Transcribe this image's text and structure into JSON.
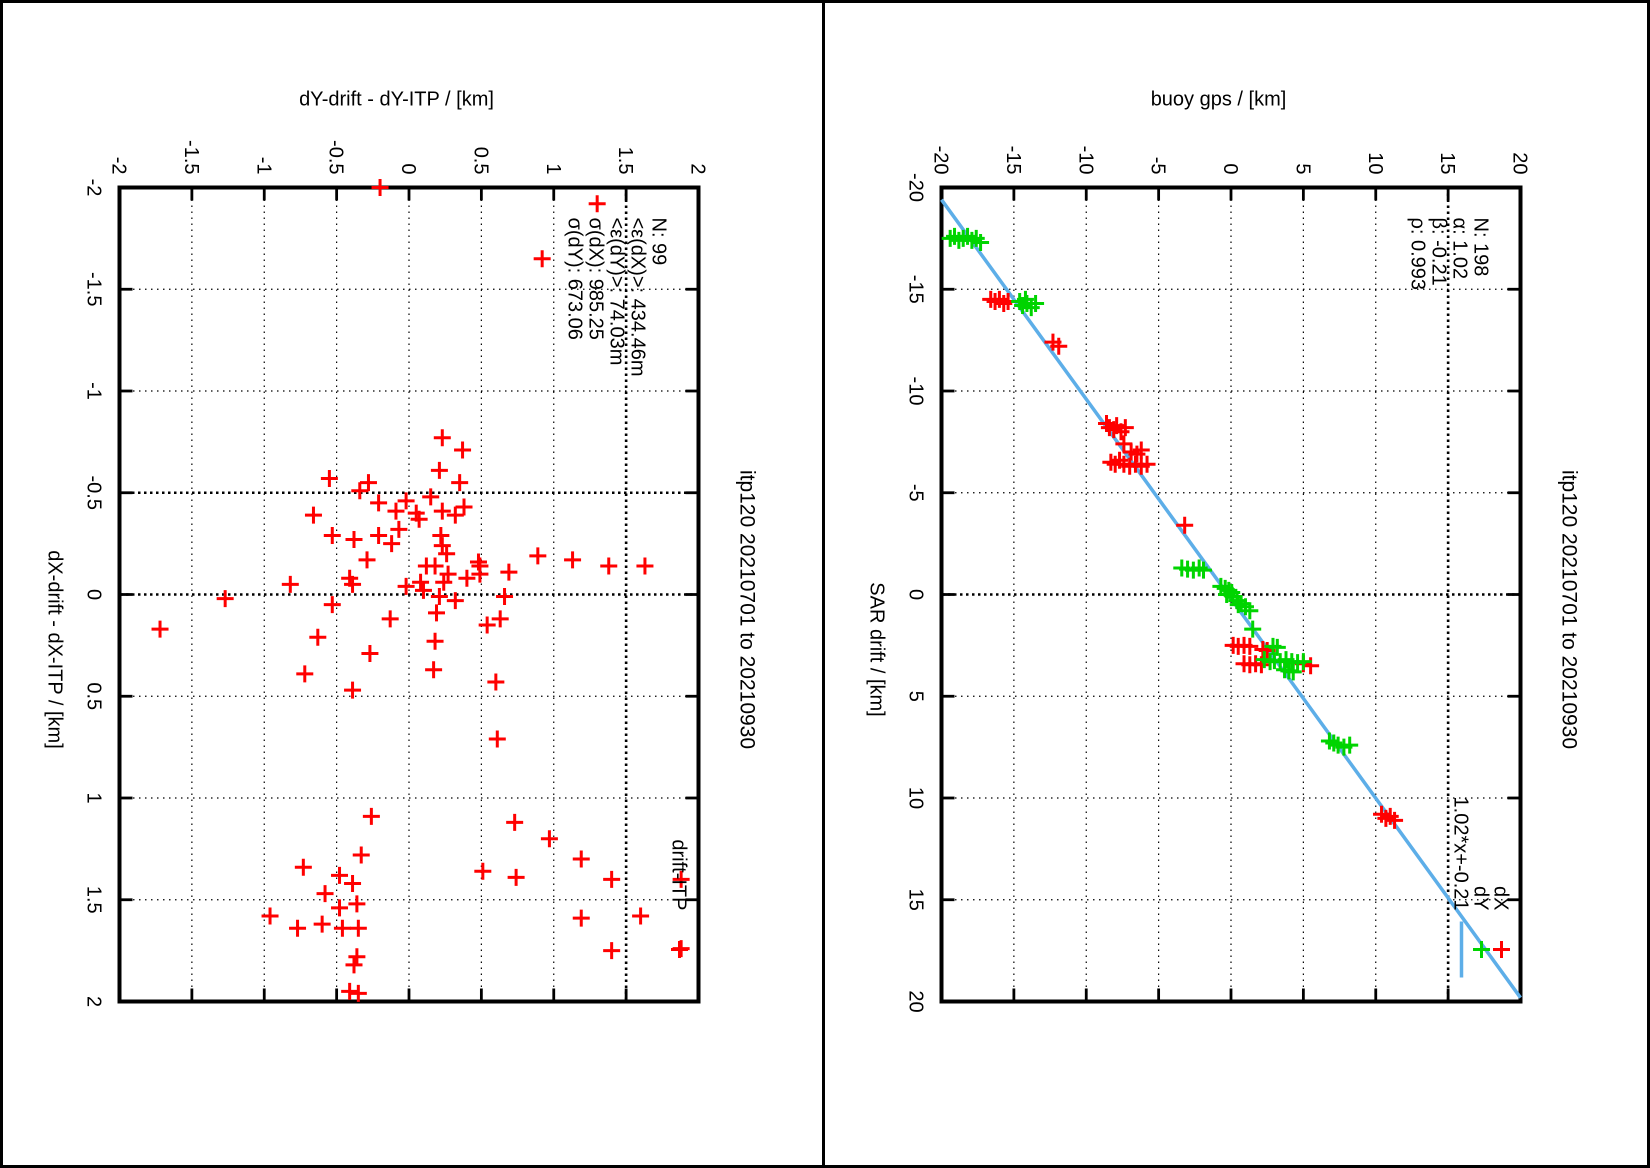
{
  "chart_data": [
    {
      "type": "scatter",
      "title": "itp120 20210701 to 20210930",
      "xlabel": "dX-drift - dX-ITP / [km]",
      "ylabel": "dY-drift - dY-ITP / [km]",
      "xlim": [
        -2,
        2
      ],
      "ylim": [
        -2,
        2
      ],
      "xticks": [
        -2,
        -1.5,
        -1,
        -0.5,
        0,
        0.5,
        1,
        1.5,
        2
      ],
      "xtick_labels": [
        "-2",
        "-1.5",
        "-1",
        "-0.5",
        "0",
        "0.5",
        "1",
        "1.5",
        "2"
      ],
      "yticks": [
        -2,
        -1.5,
        -1,
        -0.5,
        0,
        0.5,
        1,
        1.5,
        2
      ],
      "ytick_labels": [
        "-2",
        "-1.5",
        "-1",
        "-0.5",
        "0",
        "0.5",
        "1",
        "1.5",
        "2"
      ],
      "grid": true,
      "legend_position": "top-right",
      "grid_bold_x": [
        -0.5,
        0
      ],
      "grid_bold_y": [
        1.5
      ],
      "stats": [
        "N: 99",
        "<ε(dX)>:  434.46m",
        "<ε(dY)>:  74.03m",
        "σ(dX):  985.25",
        "σ(dY):  673.06"
      ],
      "key": [
        {
          "label": "drift-ITP",
          "type": "point",
          "color": "#ff0000"
        }
      ],
      "series": [
        {
          "name": "drift-ITP",
          "marker": "plus",
          "color": "#ff0000",
          "points": [
            [
              -1.92,
              1.3
            ],
            [
              -1.65,
              0.92
            ],
            [
              -2.0,
              -0.2
            ],
            [
              -0.77,
              0.23
            ],
            [
              -0.71,
              0.37
            ],
            [
              -0.61,
              0.21
            ],
            [
              -0.55,
              0.35
            ],
            [
              -0.57,
              -0.55
            ],
            [
              -0.55,
              -0.28
            ],
            [
              -0.51,
              -0.34
            ],
            [
              -0.45,
              -0.21
            ],
            [
              -0.46,
              -0.02
            ],
            [
              -0.48,
              0.15
            ],
            [
              -0.39,
              -0.66
            ],
            [
              -0.41,
              -0.09
            ],
            [
              -0.4,
              0.05
            ],
            [
              -0.37,
              0.07
            ],
            [
              -0.41,
              0.23
            ],
            [
              -0.39,
              0.32
            ],
            [
              -0.43,
              0.38
            ],
            [
              -0.29,
              -0.53
            ],
            [
              -0.27,
              -0.38
            ],
            [
              -0.29,
              -0.21
            ],
            [
              -0.32,
              -0.07
            ],
            [
              -0.25,
              -0.12
            ],
            [
              -0.29,
              0.22
            ],
            [
              -0.24,
              0.23
            ],
            [
              -0.2,
              0.26
            ],
            [
              -0.17,
              -0.29
            ],
            [
              -0.14,
              0.12
            ],
            [
              -0.14,
              0.18
            ],
            [
              -0.16,
              0.48
            ],
            [
              -0.14,
              0.49
            ],
            [
              -0.1,
              0.27
            ],
            [
              -0.1,
              0.49
            ],
            [
              -0.11,
              0.69
            ],
            [
              -0.08,
              -0.41
            ],
            [
              -0.05,
              -0.39
            ],
            [
              -0.06,
              0.24
            ],
            [
              -0.08,
              0.4
            ],
            [
              -0.05,
              -0.82
            ],
            [
              -0.04,
              -0.02
            ],
            [
              -0.06,
              0.08
            ],
            [
              -0.02,
              0.1
            ],
            [
              0.01,
              0.21
            ],
            [
              0.03,
              0.32
            ],
            [
              0.05,
              -0.53
            ],
            [
              0.09,
              0.19
            ],
            [
              0.12,
              -0.13
            ],
            [
              0.15,
              0.54
            ],
            [
              0.12,
              0.63
            ],
            [
              0.21,
              -0.63
            ],
            [
              0.23,
              0.18
            ],
            [
              0.29,
              -0.27
            ],
            [
              0.37,
              0.17
            ],
            [
              0.39,
              -0.72
            ],
            [
              0.43,
              0.6
            ],
            [
              0.47,
              -0.39
            ],
            [
              0.71,
              0.61
            ],
            [
              1.09,
              -0.26
            ],
            [
              1.28,
              -0.33
            ],
            [
              1.34,
              -0.73
            ],
            [
              1.38,
              -0.48
            ],
            [
              1.36,
              0.51
            ],
            [
              1.39,
              0.74
            ],
            [
              1.42,
              -0.39
            ],
            [
              1.47,
              -0.58
            ],
            [
              1.52,
              -0.36
            ],
            [
              1.54,
              -0.48
            ],
            [
              1.58,
              -0.96
            ],
            [
              1.64,
              -0.77
            ],
            [
              1.62,
              -0.6
            ],
            [
              1.64,
              -0.46
            ],
            [
              1.64,
              -0.35
            ],
            [
              1.78,
              -0.36
            ],
            [
              1.82,
              -0.38
            ],
            [
              1.95,
              -0.41
            ],
            [
              1.96,
              -0.35
            ],
            [
              -0.19,
              0.89
            ],
            [
              -0.17,
              1.13
            ],
            [
              -0.14,
              1.38
            ],
            [
              -0.14,
              1.63
            ],
            [
              0.01,
              0.66
            ],
            [
              1.12,
              0.73
            ],
            [
              1.2,
              0.97
            ],
            [
              1.3,
              1.19
            ],
            [
              1.4,
              1.4
            ],
            [
              1.4,
              1.88
            ],
            [
              1.58,
              1.6
            ],
            [
              1.59,
              1.19
            ],
            [
              1.75,
              1.4
            ],
            [
              1.74,
              1.88
            ],
            [
              0.02,
              -1.27
            ],
            [
              0.17,
              -1.72
            ]
          ]
        }
      ]
    },
    {
      "type": "scatter",
      "title": "itp120 20210701 to 20210930",
      "xlabel": "SAR drift / [km]",
      "ylabel": "buoy gps / [km]",
      "xlim": [
        -20,
        20
      ],
      "ylim": [
        -20,
        20
      ],
      "xticks": [
        -20,
        -15,
        -10,
        -5,
        0,
        5,
        10,
        15,
        20
      ],
      "xtick_labels": [
        "-20",
        "-15",
        "-10",
        "-5",
        "0",
        "5",
        "10",
        "15",
        "20"
      ],
      "yticks": [
        -20,
        -15,
        -10,
        -5,
        0,
        5,
        10,
        15,
        20
      ],
      "ytick_labels": [
        "-20",
        "-15",
        "-10",
        "-5",
        "0",
        "5",
        "10",
        "15",
        "20"
      ],
      "grid": true,
      "legend_position": "top-right",
      "grid_bold_x": [
        0
      ],
      "grid_bold_y": [
        15
      ],
      "stats": [
        "N: 198",
        "α: 1.02",
        "β: -0.21",
        "ρ: 0.993"
      ],
      "fit": {
        "label": "1.02*x+-0.21",
        "slope": 1.02,
        "intercept": -0.21,
        "color": "#5daee8"
      },
      "key": [
        {
          "label": "dX",
          "type": "point",
          "color": "#ff0000"
        },
        {
          "label": "dY",
          "type": "point",
          "color": "#00d400"
        },
        {
          "label": "1.02*x+-0.21",
          "type": "line",
          "color": "#5daee8"
        }
      ],
      "series": [
        {
          "name": "dX",
          "marker": "plus",
          "color": "#ff0000",
          "points": [
            [
              -14.5,
              -16.6
            ],
            [
              -14.4,
              -16.3
            ],
            [
              -14.5,
              -16.0
            ],
            [
              -14.3,
              -15.7
            ],
            [
              -14.4,
              -15.4
            ],
            [
              -12.4,
              -12.3
            ],
            [
              -12.2,
              -11.9
            ],
            [
              -8.4,
              -8.6
            ],
            [
              -8.2,
              -8.4
            ],
            [
              -8.1,
              -8.1
            ],
            [
              -8.3,
              -7.9
            ],
            [
              -8.0,
              -7.6
            ],
            [
              -8.2,
              -7.3
            ],
            [
              -7.4,
              -7.4
            ],
            [
              -7.0,
              -6.9
            ],
            [
              -6.9,
              -6.5
            ],
            [
              -7.1,
              -6.2
            ],
            [
              -6.5,
              -8.3
            ],
            [
              -6.4,
              -8.0
            ],
            [
              -6.6,
              -7.7
            ],
            [
              -6.4,
              -7.4
            ],
            [
              -6.3,
              -7.0
            ],
            [
              -6.4,
              -6.6
            ],
            [
              -6.3,
              -6.2
            ],
            [
              -6.4,
              -5.8
            ],
            [
              -3.4,
              -3.2
            ],
            [
              2.5,
              0.15
            ],
            [
              2.55,
              0.5
            ],
            [
              2.5,
              0.9
            ],
            [
              2.55,
              1.3
            ],
            [
              2.7,
              2.2
            ],
            [
              2.75,
              2.5
            ],
            [
              3.4,
              0.9
            ],
            [
              3.45,
              1.3
            ],
            [
              3.4,
              1.7
            ],
            [
              3.45,
              2.1
            ],
            [
              3.4,
              5.0
            ],
            [
              3.5,
              5.5
            ],
            [
              10.8,
              10.4
            ],
            [
              11.0,
              10.7
            ],
            [
              10.9,
              11.0
            ],
            [
              11.1,
              11.3
            ]
          ]
        },
        {
          "name": "dY",
          "marker": "plus",
          "color": "#00d400",
          "points": [
            [
              -17.5,
              -19.4
            ],
            [
              -17.6,
              -19.1
            ],
            [
              -17.4,
              -18.8
            ],
            [
              -17.5,
              -18.5
            ],
            [
              -17.6,
              -18.2
            ],
            [
              -17.4,
              -17.9
            ],
            [
              -17.5,
              -17.6
            ],
            [
              -17.3,
              -17.3
            ],
            [
              -14.4,
              -14.6
            ],
            [
              -14.2,
              -14.4
            ],
            [
              -14.3,
              -14.1
            ],
            [
              -14.1,
              -13.8
            ],
            [
              -14.3,
              -13.5
            ],
            [
              -14.5,
              -14.2
            ],
            [
              -1.3,
              -3.4
            ],
            [
              -1.25,
              -3.0
            ],
            [
              -1.2,
              -2.6
            ],
            [
              -1.3,
              -2.2
            ],
            [
              -1.2,
              -1.9
            ],
            [
              -0.4,
              -0.7
            ],
            [
              -0.3,
              -0.4
            ],
            [
              -0.2,
              -0.15
            ],
            [
              -0.1,
              0.05
            ],
            [
              0.1,
              0.15
            ],
            [
              0.0,
              -0.3
            ],
            [
              0.3,
              0.4
            ],
            [
              0.45,
              0.7
            ],
            [
              0.6,
              1.0
            ],
            [
              0.8,
              1.3
            ],
            [
              0.5,
              0.5
            ],
            [
              1.7,
              1.5
            ],
            [
              2.55,
              2.9
            ],
            [
              2.6,
              3.2
            ],
            [
              3.2,
              2.3
            ],
            [
              3.3,
              2.7
            ],
            [
              3.25,
              3.0
            ],
            [
              3.3,
              3.4
            ],
            [
              3.2,
              3.8
            ],
            [
              3.3,
              4.2
            ],
            [
              3.35,
              4.6
            ],
            [
              3.3,
              5.0
            ],
            [
              3.7,
              3.7
            ],
            [
              3.75,
              4.0
            ],
            [
              3.8,
              4.3
            ],
            [
              7.2,
              6.8
            ],
            [
              7.3,
              7.1
            ],
            [
              7.4,
              7.4
            ],
            [
              7.5,
              7.8
            ],
            [
              7.4,
              8.2
            ]
          ]
        }
      ]
    }
  ]
}
